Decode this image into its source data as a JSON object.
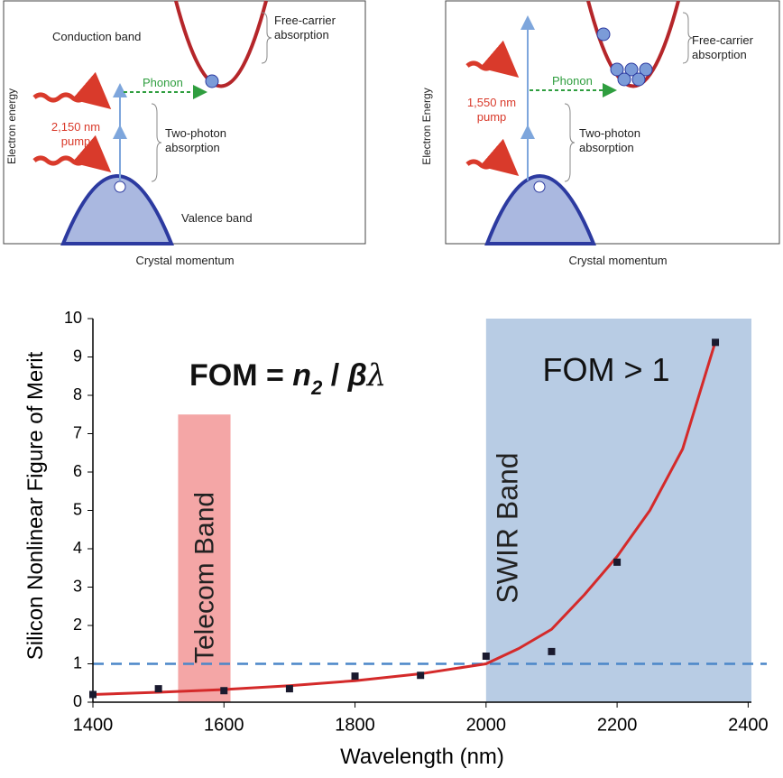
{
  "diagrams": [
    {
      "conduction": "Conduction band",
      "free_carrier": [
        "Free-carrier",
        "absorption"
      ],
      "phonon": "Phonon",
      "pump": [
        "2,150 nm",
        "pump"
      ],
      "two_photon": [
        "Two-photon",
        "absorption"
      ],
      "valence": "Valence band",
      "y_label": "Electron energy",
      "x_label": "Crystal momentum"
    },
    {
      "free_carrier": [
        "Free-carrier",
        "absorption"
      ],
      "phonon": "Phonon",
      "pump": [
        "1,550 nm",
        "pump"
      ],
      "two_photon": [
        "Two-photon",
        "absorption"
      ],
      "y_label": "Electron Energy",
      "x_label": "Crystal momentum"
    }
  ],
  "chart_data": {
    "type": "scatter",
    "x_label": "Wavelength (nm)",
    "y_label": "Silicon Nonlinear Figure of Merit",
    "formula": [
      "FOM = ",
      "n",
      "2",
      " / ",
      "β",
      "λ"
    ],
    "annotation": "FOM > 1",
    "xlim": [
      1400,
      2405
    ],
    "ylim": [
      0,
      10
    ],
    "xticks": [
      1400,
      1600,
      1800,
      2000,
      2200,
      2400
    ],
    "yticks": [
      0,
      1,
      2,
      3,
      4,
      5,
      6,
      7,
      8,
      9,
      10
    ],
    "regions": [
      {
        "label": "Telecom Band",
        "x0": 1530,
        "x1": 1610,
        "top": 7.5,
        "color": "#f4a6a6"
      },
      {
        "label": "SWIR Band",
        "x0": 2000,
        "x1": 2405,
        "top": 10,
        "color": "#b8cce4"
      }
    ],
    "reference_line": {
      "value": 1,
      "color": "#4a86c8"
    },
    "series": [
      {
        "kind": "points",
        "color": "#1a1a2e",
        "x": [
          1400,
          1500,
          1600,
          1700,
          1800,
          1900,
          2000,
          2100,
          2200,
          2350
        ],
        "values": [
          0.2,
          0.35,
          0.3,
          0.35,
          0.68,
          0.7,
          1.2,
          1.32,
          3.65,
          9.38
        ]
      },
      {
        "kind": "line",
        "color": "#d42a2a",
        "x": [
          1400,
          1500,
          1600,
          1700,
          1800,
          1900,
          2000,
          2050,
          2100,
          2150,
          2200,
          2250,
          2300,
          2350
        ],
        "values": [
          0.2,
          0.26,
          0.33,
          0.43,
          0.56,
          0.74,
          1.0,
          1.4,
          1.9,
          2.8,
          3.8,
          5.0,
          6.6,
          9.4
        ]
      }
    ]
  }
}
